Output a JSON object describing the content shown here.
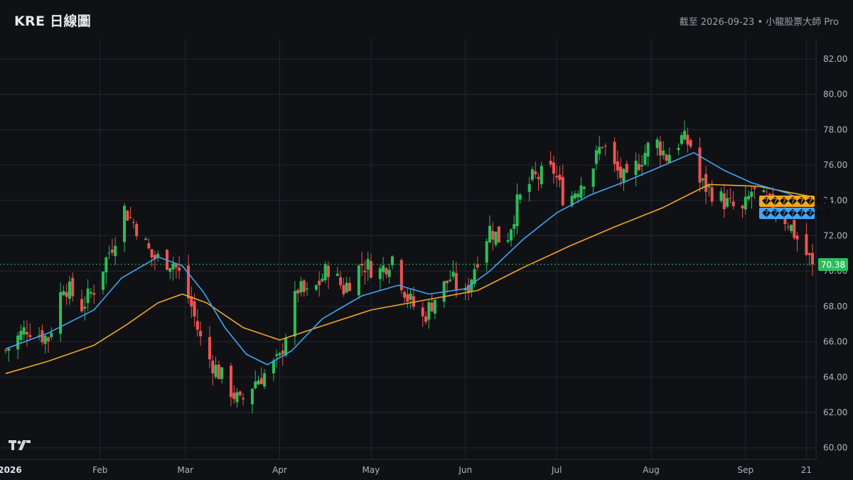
{
  "header": {
    "title": "KRE 日線圖",
    "subtitle": "截至 2026-09-23 • 小龍股票大師 Pro"
  },
  "colors": {
    "up": "#ef5350",
    "down": "#26a69a",
    "ma_fast": "#42a5f5",
    "ma_slow": "#f5a623",
    "last_price": "#2ebd59",
    "grid": "#232731",
    "background": "#0f1115"
  },
  "legend_tags": {
    "ma_slow_label": "��������",
    "ma_fast_label": "��������",
    "last_price_label": "70.38"
  },
  "chart_data": {
    "type": "candlestick",
    "ylim": [
      59.5,
      83.0
    ],
    "y_ticks": [
      "82.00",
      "80.00",
      "78.00",
      "76.00",
      "74.00",
      "72.00",
      "70.00",
      "68.00",
      "66.00",
      "64.00",
      "62.00",
      "60.00"
    ],
    "x_ticks": [
      {
        "label": "2026",
        "date": "2026-01-01",
        "bold": true
      },
      {
        "label": "Feb",
        "date": "2026-02-01"
      },
      {
        "label": "Mar",
        "date": "2026-03-01"
      },
      {
        "label": "Apr",
        "date": "2026-04-01"
      },
      {
        "label": "May",
        "date": "2026-05-01"
      },
      {
        "label": "Jun",
        "date": "2026-06-01"
      },
      {
        "label": "Jul",
        "date": "2026-07-01"
      },
      {
        "label": "Aug",
        "date": "2026-08-01"
      },
      {
        "label": "Sep",
        "date": "2026-09-01"
      },
      {
        "label": "21",
        "date": "2026-09-21"
      }
    ],
    "date_range": [
      "2026-01-01",
      "2026-09-23"
    ],
    "last_price": 70.38,
    "close_path": [
      [
        "2026-01-01",
        65.5
      ],
      [
        "2026-01-08",
        66.8
      ],
      [
        "2026-01-15",
        66.2
      ],
      [
        "2026-01-20",
        69.3
      ],
      [
        "2026-01-26",
        68.0
      ],
      [
        "2026-01-30",
        69.0
      ],
      [
        "2026-02-05",
        71.5
      ],
      [
        "2026-02-09",
        73.5
      ],
      [
        "2026-02-13",
        72.5
      ],
      [
        "2026-02-18",
        70.8
      ],
      [
        "2026-02-25",
        70.5
      ],
      [
        "2026-02-28",
        69.5
      ],
      [
        "2026-03-03",
        68.0
      ],
      [
        "2026-03-07",
        65.5
      ],
      [
        "2026-03-11",
        64.5
      ],
      [
        "2026-03-15",
        63.5
      ],
      [
        "2026-03-19",
        62.5
      ],
      [
        "2026-03-24",
        63.8
      ],
      [
        "2026-03-28",
        64.3
      ],
      [
        "2026-04-01",
        65.0
      ],
      [
        "2026-04-03",
        66.5
      ],
      [
        "2026-04-07",
        69.0
      ],
      [
        "2026-04-11",
        68.5
      ],
      [
        "2026-04-17",
        70.2
      ],
      [
        "2026-04-22",
        69.0
      ],
      [
        "2026-04-28",
        70.4
      ],
      [
        "2026-05-04",
        70.0
      ],
      [
        "2026-05-08",
        70.8
      ],
      [
        "2026-05-13",
        68.5
      ],
      [
        "2026-05-18",
        67.3
      ],
      [
        "2026-05-22",
        68.5
      ],
      [
        "2026-05-27",
        69.6
      ],
      [
        "2026-06-01",
        68.6
      ],
      [
        "2026-06-05",
        70.8
      ],
      [
        "2026-06-09",
        72.4
      ],
      [
        "2026-06-14",
        71.5
      ],
      [
        "2026-06-18",
        73.8
      ],
      [
        "2026-06-23",
        75.2
      ],
      [
        "2026-06-30",
        75.7
      ],
      [
        "2026-07-04",
        73.8
      ],
      [
        "2026-07-08",
        74.8
      ],
      [
        "2026-07-13",
        76.0
      ],
      [
        "2026-07-16",
        77.3
      ],
      [
        "2026-07-20",
        75.8
      ],
      [
        "2026-07-24",
        75.0
      ],
      [
        "2026-07-28",
        76.2
      ],
      [
        "2026-08-02",
        77.5
      ],
      [
        "2026-08-06",
        76.5
      ],
      [
        "2026-08-11",
        77.5
      ],
      [
        "2026-08-15",
        77.0
      ],
      [
        "2026-08-17",
        75.0
      ],
      [
        "2026-08-21",
        74.5
      ],
      [
        "2026-08-26",
        73.8
      ],
      [
        "2026-08-31",
        73.3
      ],
      [
        "2026-09-03",
        74.5
      ],
      [
        "2026-09-07",
        74.0
      ],
      [
        "2026-09-11",
        73.5
      ],
      [
        "2026-09-15",
        72.8
      ],
      [
        "2026-09-19",
        71.5
      ],
      [
        "2026-09-23",
        70.38
      ]
    ],
    "ma_fast_path": [
      [
        "2026-01-01",
        65.6
      ],
      [
        "2026-01-15",
        66.5
      ],
      [
        "2026-01-30",
        67.8
      ],
      [
        "2026-02-08",
        69.6
      ],
      [
        "2026-02-20",
        70.8
      ],
      [
        "2026-02-28",
        70.3
      ],
      [
        "2026-03-07",
        68.8
      ],
      [
        "2026-03-14",
        66.8
      ],
      [
        "2026-03-21",
        65.3
      ],
      [
        "2026-03-28",
        64.7
      ],
      [
        "2026-04-05",
        65.5
      ],
      [
        "2026-04-15",
        67.3
      ],
      [
        "2026-04-28",
        68.6
      ],
      [
        "2026-05-10",
        69.2
      ],
      [
        "2026-05-20",
        68.7
      ],
      [
        "2026-06-01",
        69.0
      ],
      [
        "2026-06-09",
        70.0
      ],
      [
        "2026-06-20",
        71.8
      ],
      [
        "2026-07-01",
        73.3
      ],
      [
        "2026-07-12",
        74.3
      ],
      [
        "2026-07-24",
        75.1
      ],
      [
        "2026-08-04",
        75.9
      ],
      [
        "2026-08-15",
        76.7
      ],
      [
        "2026-08-25",
        75.7
      ],
      [
        "2026-09-03",
        75.0
      ],
      [
        "2026-09-15",
        74.4
      ],
      [
        "2026-09-23",
        73.7
      ]
    ],
    "ma_slow_path": [
      [
        "2026-01-01",
        64.2
      ],
      [
        "2026-01-15",
        64.9
      ],
      [
        "2026-01-30",
        65.8
      ],
      [
        "2026-02-10",
        67.0
      ],
      [
        "2026-02-20",
        68.2
      ],
      [
        "2026-02-28",
        68.7
      ],
      [
        "2026-03-08",
        68.2
      ],
      [
        "2026-03-20",
        66.8
      ],
      [
        "2026-04-01",
        66.1
      ],
      [
        "2026-04-15",
        66.9
      ],
      [
        "2026-05-01",
        67.8
      ],
      [
        "2026-05-20",
        68.4
      ],
      [
        "2026-06-05",
        68.9
      ],
      [
        "2026-06-20",
        70.2
      ],
      [
        "2026-07-05",
        71.4
      ],
      [
        "2026-07-20",
        72.5
      ],
      [
        "2026-08-05",
        73.6
      ],
      [
        "2026-08-20",
        74.9
      ],
      [
        "2026-09-05",
        74.8
      ],
      [
        "2026-09-23",
        74.2
      ]
    ]
  }
}
